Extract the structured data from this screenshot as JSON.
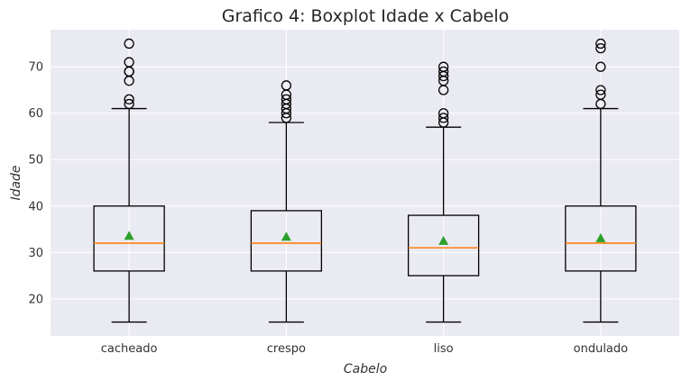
{
  "chart_data": {
    "type": "boxplot",
    "title": "Grafico 4: Boxplot Idade x Cabelo",
    "xlabel": "Cabelo",
    "ylabel": "Idade",
    "ylim": [
      12,
      78
    ],
    "yticks": [
      20,
      30,
      40,
      50,
      60,
      70
    ],
    "grid": true,
    "colors": {
      "background": "#eaeaf2",
      "grid": "#ffffff",
      "box": "#000000",
      "median": "#ff7f0e",
      "mean": "#2ca02c"
    },
    "categories": [
      "cacheado",
      "crespo",
      "liso",
      "ondulado"
    ],
    "boxes": [
      {
        "whisker_low": 15,
        "q1": 26,
        "median": 32,
        "q3": 40,
        "whisker_high": 61,
        "mean": 33.5,
        "outliers": [
          62,
          63,
          67,
          69,
          69,
          71,
          75
        ]
      },
      {
        "whisker_low": 15,
        "q1": 26,
        "median": 32,
        "q3": 39,
        "whisker_high": 58,
        "mean": 33.3,
        "outliers": [
          59,
          60,
          61,
          62,
          63,
          64,
          66
        ]
      },
      {
        "whisker_low": 15,
        "q1": 25,
        "median": 31,
        "q3": 38,
        "whisker_high": 57,
        "mean": 32.4,
        "outliers": [
          58,
          59,
          60,
          65,
          67,
          68,
          69,
          70
        ]
      },
      {
        "whisker_low": 15,
        "q1": 26,
        "median": 32,
        "q3": 40,
        "whisker_high": 61,
        "mean": 33.0,
        "outliers": [
          62,
          64,
          65,
          70,
          74,
          75
        ]
      }
    ]
  }
}
